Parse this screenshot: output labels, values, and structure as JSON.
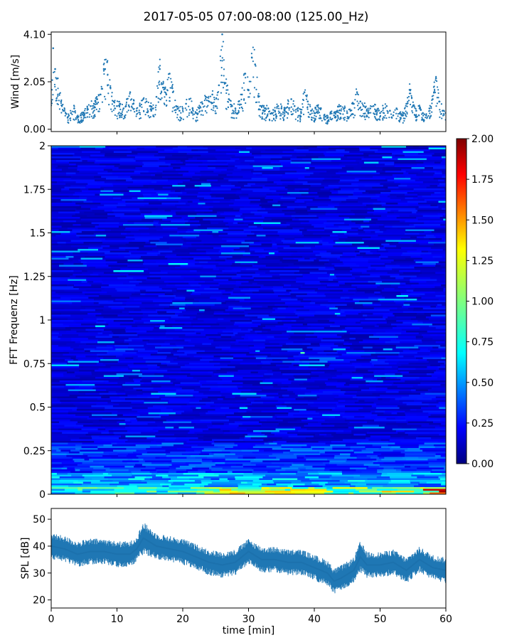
{
  "title": "2017-05-05 07:00-08:00 (125.00_Hz)",
  "chart_data": [
    {
      "type": "scatter",
      "name": "wind",
      "ylabel": "Wind [m/s]",
      "xlim": [
        0,
        60
      ],
      "ylim": [
        -0.1,
        4.2
      ],
      "yticks": [
        0.0,
        2.05,
        4.1
      ],
      "ytick_labels": [
        "0.00",
        "2.05",
        "4.10"
      ],
      "color": "#1f77b4",
      "points": [
        [
          0.0,
          1.2
        ],
        [
          0.3,
          3.5
        ],
        [
          0.6,
          2.6
        ],
        [
          1.0,
          2.2
        ],
        [
          1.5,
          1.2
        ],
        [
          2.0,
          0.8
        ],
        [
          2.5,
          0.5
        ],
        [
          3.0,
          0.7
        ],
        [
          3.5,
          0.9
        ],
        [
          4.0,
          0.5
        ],
        [
          4.5,
          0.6
        ],
        [
          5.0,
          0.7
        ],
        [
          5.5,
          0.9
        ],
        [
          6.0,
          1.0
        ],
        [
          6.5,
          1.1
        ],
        [
          7.0,
          1.3
        ],
        [
          7.5,
          1.5
        ],
        [
          8.0,
          2.6
        ],
        [
          8.5,
          2.9
        ],
        [
          9.0,
          1.8
        ],
        [
          9.5,
          1.2
        ],
        [
          10.0,
          1.0
        ],
        [
          10.5,
          1.1
        ],
        [
          11.0,
          0.9
        ],
        [
          11.5,
          1.3
        ],
        [
          12.0,
          1.6
        ],
        [
          12.5,
          1.1
        ],
        [
          13.0,
          0.8
        ],
        [
          13.5,
          1.0
        ],
        [
          14.0,
          1.3
        ],
        [
          14.5,
          1.2
        ],
        [
          15.0,
          1.0
        ],
        [
          15.5,
          0.9
        ],
        [
          16.0,
          1.4
        ],
        [
          16.5,
          2.6
        ],
        [
          17.0,
          1.8
        ],
        [
          17.5,
          1.5
        ],
        [
          18.0,
          2.4
        ],
        [
          18.5,
          1.6
        ],
        [
          19.0,
          1.0
        ],
        [
          19.5,
          0.8
        ],
        [
          20.0,
          0.9
        ],
        [
          20.5,
          1.1
        ],
        [
          21.0,
          1.3
        ],
        [
          21.5,
          0.9
        ],
        [
          22.0,
          0.7
        ],
        [
          22.5,
          0.9
        ],
        [
          23.0,
          1.1
        ],
        [
          23.5,
          1.4
        ],
        [
          24.0,
          1.2
        ],
        [
          24.5,
          1.5
        ],
        [
          25.0,
          1.0
        ],
        [
          25.5,
          1.9
        ],
        [
          26.0,
          4.1
        ],
        [
          26.5,
          2.0
        ],
        [
          27.0,
          1.3
        ],
        [
          27.5,
          1.0
        ],
        [
          28.0,
          0.9
        ],
        [
          28.5,
          1.2
        ],
        [
          29.0,
          1.5
        ],
        [
          29.5,
          2.4
        ],
        [
          30.0,
          1.7
        ],
        [
          30.5,
          3.1
        ],
        [
          31.0,
          2.8
        ],
        [
          31.5,
          1.4
        ],
        [
          32.0,
          1.0
        ],
        [
          32.5,
          0.8
        ],
        [
          33.0,
          0.9
        ],
        [
          33.5,
          0.7
        ],
        [
          34.0,
          0.8
        ],
        [
          34.5,
          1.0
        ],
        [
          35.0,
          0.9
        ],
        [
          35.5,
          0.8
        ],
        [
          36.0,
          1.1
        ],
        [
          36.5,
          1.3
        ],
        [
          37.0,
          1.0
        ],
        [
          37.5,
          0.8
        ],
        [
          38.0,
          0.7
        ],
        [
          38.5,
          1.6
        ],
        [
          39.0,
          1.2
        ],
        [
          39.5,
          0.8
        ],
        [
          40.0,
          0.7
        ],
        [
          40.5,
          1.0
        ],
        [
          41.0,
          0.9
        ],
        [
          41.5,
          0.6
        ],
        [
          42.0,
          0.5
        ],
        [
          42.5,
          0.7
        ],
        [
          43.0,
          0.6
        ],
        [
          43.5,
          0.8
        ],
        [
          44.0,
          1.0
        ],
        [
          44.5,
          0.9
        ],
        [
          45.0,
          0.7
        ],
        [
          45.5,
          0.8
        ],
        [
          46.0,
          1.1
        ],
        [
          46.5,
          1.6
        ],
        [
          47.0,
          1.2
        ],
        [
          47.5,
          1.0
        ],
        [
          48.0,
          0.8
        ],
        [
          48.5,
          0.9
        ],
        [
          49.0,
          1.0
        ],
        [
          49.5,
          0.8
        ],
        [
          50.0,
          0.7
        ],
        [
          50.5,
          0.9
        ],
        [
          51.0,
          1.0
        ],
        [
          51.5,
          0.8
        ],
        [
          52.0,
          0.6
        ],
        [
          52.5,
          0.9
        ],
        [
          53.0,
          0.7
        ],
        [
          53.5,
          0.6
        ],
        [
          54.0,
          1.1
        ],
        [
          54.5,
          1.7
        ],
        [
          55.0,
          1.0
        ],
        [
          55.5,
          0.8
        ],
        [
          56.0,
          0.9
        ],
        [
          56.5,
          0.7
        ],
        [
          57.0,
          0.6
        ],
        [
          57.5,
          0.9
        ],
        [
          58.0,
          1.3
        ],
        [
          58.5,
          2.2
        ],
        [
          59.0,
          1.2
        ],
        [
          59.5,
          0.8
        ],
        [
          60.0,
          0.7
        ]
      ]
    },
    {
      "type": "heatmap",
      "name": "spectrogram",
      "ylabel": "FFT Frequenz [Hz]",
      "xlim": [
        0,
        60
      ],
      "ylim": [
        0,
        2
      ],
      "yticks": [
        0,
        0.25,
        0.5,
        0.75,
        1,
        1.25,
        1.5,
        1.75,
        2
      ],
      "ytick_labels": [
        "0",
        "0.25",
        "0.5",
        "0.75",
        "1",
        "1.25",
        "1.5",
        "1.75",
        "2"
      ],
      "colormap": "jet",
      "colorbar": {
        "vmin": 0,
        "vmax": 2,
        "ticks": [
          0.0,
          0.25,
          0.5,
          0.75,
          1.0,
          1.25,
          1.5,
          1.75,
          2.0
        ],
        "tick_labels": [
          "0.00",
          "0.25",
          "0.50",
          "0.75",
          "1.00",
          "1.25",
          "1.50",
          "1.75",
          "2.00"
        ]
      },
      "time_band_means": [
        {
          "t": 0,
          "low_freq_level": 0.9,
          "high_freq_level": 0.2
        },
        {
          "t": 10,
          "low_freq_level": 1.0,
          "high_freq_level": 0.2
        },
        {
          "t": 20,
          "low_freq_level": 1.1,
          "high_freq_level": 0.2
        },
        {
          "t": 30,
          "low_freq_level": 1.4,
          "high_freq_level": 0.2
        },
        {
          "t": 40,
          "low_freq_level": 1.2,
          "high_freq_level": 0.2
        },
        {
          "t": 50,
          "low_freq_level": 1.3,
          "high_freq_level": 0.2
        },
        {
          "t": 60,
          "low_freq_level": 1.9,
          "high_freq_level": 0.2
        }
      ]
    },
    {
      "type": "area",
      "name": "spl",
      "ylabel": "SPL [dB]",
      "xlabel": "time [min]",
      "xlim": [
        0,
        60
      ],
      "ylim": [
        17,
        54
      ],
      "xticks": [
        0,
        10,
        20,
        30,
        40,
        50,
        60
      ],
      "xtick_labels": [
        "0",
        "10",
        "20",
        "30",
        "40",
        "50",
        "60"
      ],
      "yticks": [
        20,
        30,
        40,
        50
      ],
      "ytick_labels": [
        "20",
        "30",
        "40",
        "50"
      ],
      "color": "#1f77b4",
      "series": [
        {
          "x": [
            0,
            2,
            4,
            6,
            8,
            10,
            12,
            13,
            14,
            16,
            18,
            20,
            22,
            24,
            26,
            28,
            30,
            32,
            34,
            36,
            38,
            40,
            42,
            43,
            44,
            46,
            47,
            48,
            50,
            52,
            54,
            56,
            58,
            60
          ],
          "mean": [
            40,
            39,
            37,
            38,
            38,
            37,
            37,
            39,
            43,
            40,
            39,
            38,
            36,
            34,
            33,
            34,
            38,
            35,
            35,
            34,
            34,
            32,
            30,
            27,
            28,
            31,
            36,
            33,
            33,
            34,
            31,
            35,
            32,
            31
          ],
          "spread": [
            4,
            4,
            4,
            4,
            4,
            4,
            4,
            4,
            5,
            4,
            4,
            4,
            4,
            4,
            4,
            4,
            4,
            4,
            4,
            4,
            4,
            4,
            4,
            4,
            4,
            4,
            5,
            4,
            4,
            4,
            4,
            4,
            4,
            4
          ]
        }
      ]
    }
  ]
}
